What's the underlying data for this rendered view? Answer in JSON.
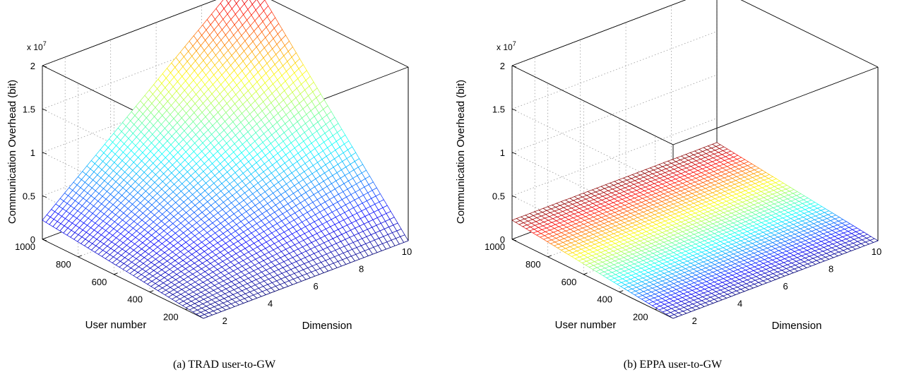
{
  "chart_data": [
    {
      "type": "surface",
      "caption": "(a)  TRAD user-to-GW",
      "xlabel": "Dimension",
      "ylabel": "User number",
      "zlabel": "Communication Overhead (bit)",
      "z_multiplier_label": "x 10",
      "z_multiplier_exp": "7",
      "x_ticks": [
        "2",
        "4",
        "6",
        "8",
        "10"
      ],
      "y_ticks": [
        "200",
        "400",
        "600",
        "800",
        "1000"
      ],
      "z_ticks": [
        "0",
        "0.5",
        "1",
        "1.5",
        "2"
      ],
      "xlim": [
        1,
        10
      ],
      "ylim": [
        100,
        1000
      ],
      "zlim": [
        0,
        20000000
      ],
      "corner_values": {
        "dim1_users100": 0,
        "dim10_users100": 0,
        "dim1_users1000": 2200000,
        "dim10_users1000": 22000000
      },
      "colormap": "jet",
      "grid": true
    },
    {
      "type": "surface",
      "caption": "(b)  EPPA user-to-GW",
      "xlabel": "Dimension",
      "ylabel": "User number",
      "zlabel": "Communication Overhead (bit)",
      "z_multiplier_label": "x 10",
      "z_multiplier_exp": "7",
      "x_ticks": [
        "2",
        "4",
        "6",
        "8",
        "10"
      ],
      "y_ticks": [
        "200",
        "400",
        "600",
        "800",
        "1000"
      ],
      "z_ticks": [
        "0",
        "0.5",
        "1",
        "1.5",
        "2"
      ],
      "xlim": [
        1,
        10
      ],
      "ylim": [
        100,
        1000
      ],
      "zlim": [
        0,
        20000000
      ],
      "corner_values": {
        "dim1_users100": 0,
        "dim10_users100": 0,
        "dim1_users1000": 2200000,
        "dim10_users1000": 2200000
      },
      "colormap": "jet",
      "grid": true
    }
  ]
}
